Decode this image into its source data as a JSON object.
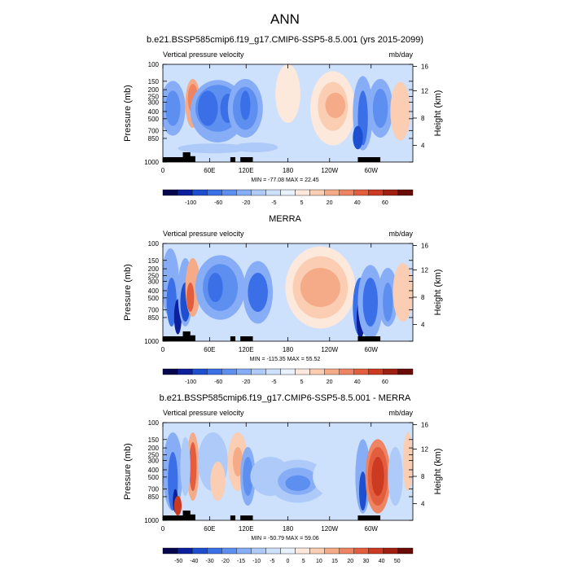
{
  "page_title": "ANN",
  "chart_data": [
    {
      "type": "heatmap",
      "title": "b.e21.BSSP585cmip6.f19_g17.CMIP6-SSP5-8.5.001 (yrs 2015-2099)",
      "left_label": "Vertical pressure velocity",
      "right_label": "mb/day",
      "ylabel": "Pressure (mb)",
      "y2label": "Height (km)",
      "y_ticks": [
        "100",
        "150",
        "200",
        "250",
        "300",
        "400",
        "500",
        "700",
        "850",
        "1000"
      ],
      "y2_ticks": [
        "16",
        "12",
        "8",
        "4"
      ],
      "x_ticks": [
        "0",
        "60E",
        "120E",
        "180",
        "120W",
        "60W"
      ],
      "stats": "MIN = -77.08  MAX =  22.45",
      "colorbar_labels": [
        "-100",
        "-60",
        "-20",
        "-5",
        "5",
        "20",
        "40",
        "60"
      ],
      "colorbar_colors": [
        "#06064f",
        "#0c1f9c",
        "#1e4fd0",
        "#3a6fe8",
        "#5d8ff0",
        "#86adf6",
        "#aecaf9",
        "#cde0fc",
        "#e8f1fe",
        "#fde8dc",
        "#fbcdb3",
        "#f5ab88",
        "#ee8462",
        "#e35e3e",
        "#cc3a22",
        "#a11f10",
        "#6a0c05"
      ]
    },
    {
      "type": "heatmap",
      "title": "MERRA",
      "left_label": "Vertical pressure velocity",
      "right_label": "mb/day",
      "ylabel": "Pressure (mb)",
      "y2label": "Height (km)",
      "y_ticks": [
        "100",
        "150",
        "200",
        "250",
        "300",
        "400",
        "500",
        "700",
        "850",
        "1000"
      ],
      "y2_ticks": [
        "16",
        "12",
        "8",
        "4"
      ],
      "x_ticks": [
        "0",
        "60E",
        "120E",
        "180",
        "120W",
        "60W"
      ],
      "stats": "MIN = -115.35  MAX =  55.52",
      "colorbar_labels": [
        "-100",
        "-60",
        "-20",
        "-5",
        "5",
        "20",
        "40",
        "60"
      ],
      "colorbar_colors": [
        "#06064f",
        "#0c1f9c",
        "#1e4fd0",
        "#3a6fe8",
        "#5d8ff0",
        "#86adf6",
        "#aecaf9",
        "#cde0fc",
        "#e8f1fe",
        "#fde8dc",
        "#fbcdb3",
        "#f5ab88",
        "#ee8462",
        "#e35e3e",
        "#cc3a22",
        "#a11f10",
        "#6a0c05"
      ]
    },
    {
      "type": "heatmap",
      "title": "b.e21.BSSP585cmip6.f19_g17.CMIP6-SSP5-8.5.001 - MERRA",
      "left_label": "Vertical pressure velocity",
      "right_label": "mb/day",
      "ylabel": "Pressure (mb)",
      "y2label": "Height (km)",
      "y_ticks": [
        "100",
        "150",
        "200",
        "250",
        "300",
        "400",
        "500",
        "700",
        "850",
        "1000"
      ],
      "y2_ticks": [
        "16",
        "12",
        "8",
        "4"
      ],
      "x_ticks": [
        "0",
        "60E",
        "120E",
        "180",
        "120W",
        "60W"
      ],
      "stats": "MIN = -50.79  MAX =  59.06",
      "colorbar_labels": [
        "-50",
        "-40",
        "-30",
        "-20",
        "-15",
        "-10",
        "-5",
        "0",
        "5",
        "10",
        "15",
        "20",
        "30",
        "40",
        "50"
      ],
      "colorbar_colors": [
        "#06064f",
        "#0c1f9c",
        "#1e4fd0",
        "#3a6fe8",
        "#5d8ff0",
        "#86adf6",
        "#aecaf9",
        "#cde0fc",
        "#e8f1fe",
        "#fde8dc",
        "#fbcdb3",
        "#f5ab88",
        "#ee8462",
        "#e35e3e",
        "#cc3a22",
        "#a11f10",
        "#6a0c05"
      ]
    }
  ]
}
